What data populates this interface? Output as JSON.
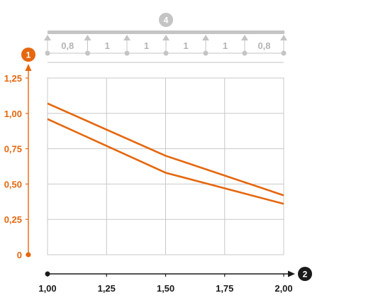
{
  "chart_data": {
    "type": "line",
    "title": "",
    "xlabel": "",
    "ylabel": "",
    "xlim": [
      1.0,
      2.0
    ],
    "ylim": [
      0,
      1.3
    ],
    "x_ticks": [
      "1,00",
      "1,25",
      "1,50",
      "1,75",
      "2,00"
    ],
    "x_tick_values": [
      1.0,
      1.25,
      1.5,
      1.75,
      2.0
    ],
    "y_ticks": [
      "0",
      "0,25",
      "0,50",
      "0,75",
      "1,00",
      "1,25"
    ],
    "y_tick_values": [
      0,
      0.25,
      0.5,
      0.75,
      1.0,
      1.25
    ],
    "grid": true,
    "series": [
      {
        "x": [
          1.0,
          1.5,
          2.0
        ],
        "y": [
          1.07,
          0.7,
          0.42
        ]
      },
      {
        "x": [
          1.0,
          1.5,
          2.0
        ],
        "y": [
          0.96,
          0.58,
          0.36
        ]
      }
    ],
    "y_axis_marker": "1",
    "x_axis_marker": "2",
    "beam_marker": "4",
    "spans": [
      "0,8",
      "1",
      "1",
      "1",
      "1",
      "0,8"
    ],
    "colors": {
      "series": "#e5670e",
      "y_axis": "#e5670e",
      "x_axis": "#1a1a1a",
      "grid": "#c8c8c8",
      "beam": "#c4c4c4",
      "span_text": "#b4b4b4"
    }
  }
}
